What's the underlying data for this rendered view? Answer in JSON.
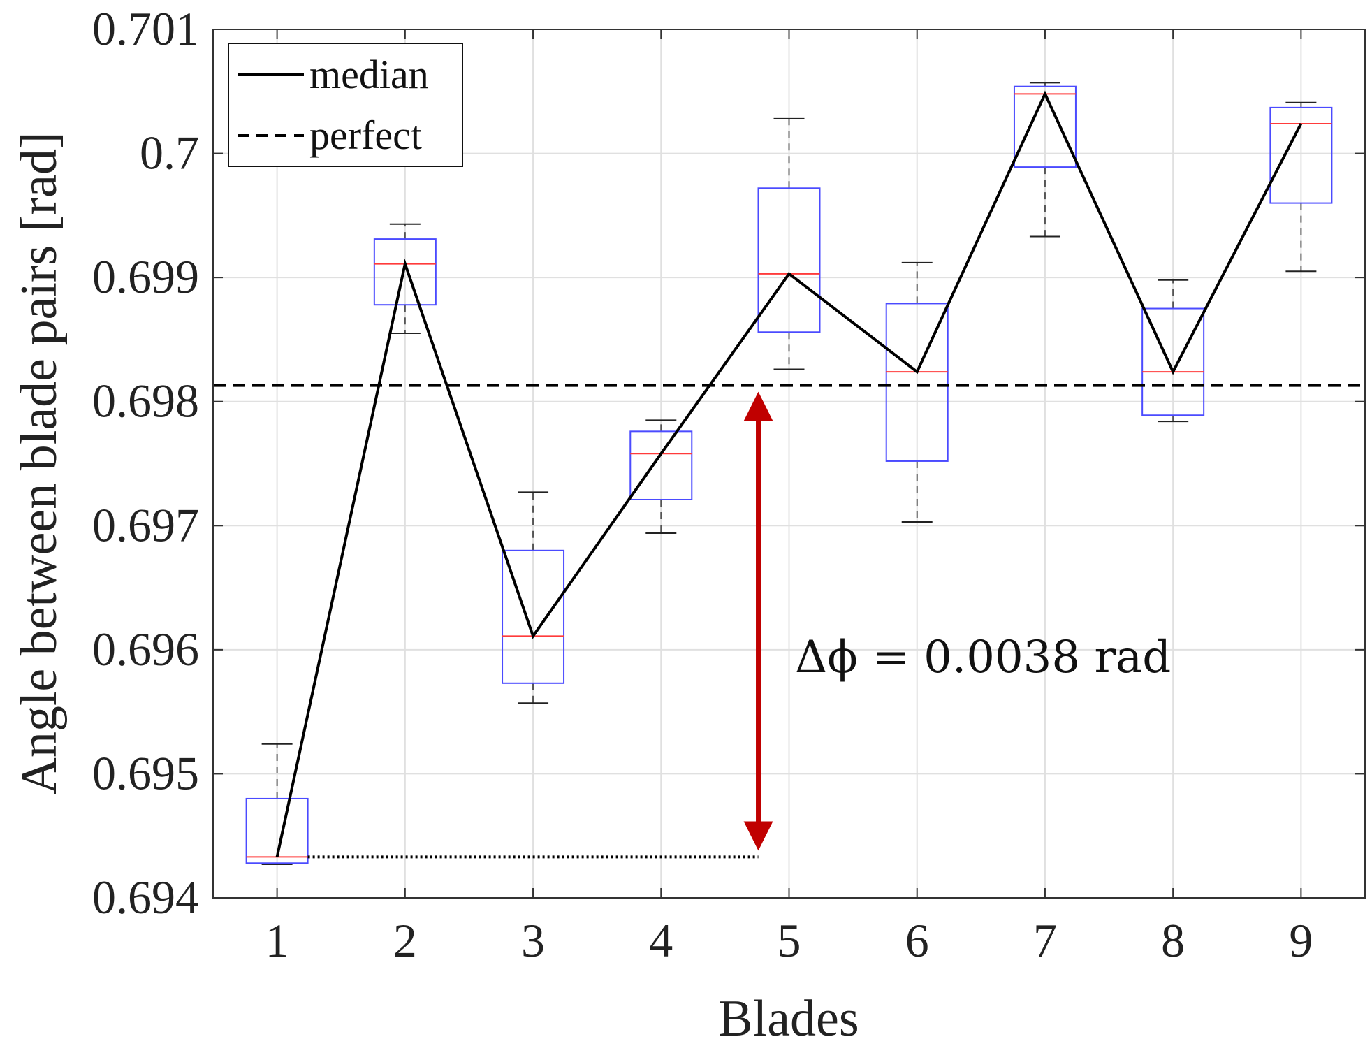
{
  "chart_data": {
    "type": "box",
    "xlabel": "Blades",
    "ylabel": "Angle between blade pairs [rad]",
    "categories": [
      "1",
      "2",
      "3",
      "4",
      "5",
      "6",
      "7",
      "8",
      "9"
    ],
    "ylim": [
      0.694,
      0.701
    ],
    "yticks": [
      0.694,
      0.695,
      0.696,
      0.697,
      0.698,
      0.699,
      0.7,
      0.701
    ],
    "ytick_labels": [
      "0.694",
      "0.695",
      "0.696",
      "0.697",
      "0.698",
      "0.699",
      "0.7",
      "0.701"
    ],
    "grid": true,
    "boxes": [
      {
        "category": "1",
        "whisker_low": 0.69427,
        "q1": 0.69428,
        "median": 0.69433,
        "q3": 0.6948,
        "whisker_high": 0.69524
      },
      {
        "category": "2",
        "whisker_low": 0.69855,
        "q1": 0.69878,
        "median": 0.69911,
        "q3": 0.69931,
        "whisker_high": 0.69943
      },
      {
        "category": "3",
        "whisker_low": 0.69557,
        "q1": 0.69573,
        "median": 0.69611,
        "q3": 0.6968,
        "whisker_high": 0.69727
      },
      {
        "category": "4",
        "whisker_low": 0.69694,
        "q1": 0.69721,
        "median": 0.69758,
        "q3": 0.69776,
        "whisker_high": 0.69785
      },
      {
        "category": "5",
        "whisker_low": 0.69826,
        "q1": 0.69856,
        "median": 0.69903,
        "q3": 0.69972,
        "whisker_high": 0.70028
      },
      {
        "category": "6",
        "whisker_low": 0.69703,
        "q1": 0.69752,
        "median": 0.69824,
        "q3": 0.69879,
        "whisker_high": 0.69912
      },
      {
        "category": "7",
        "whisker_low": 0.69933,
        "q1": 0.69989,
        "median": 0.70048,
        "q3": 0.70054,
        "whisker_high": 0.70057
      },
      {
        "category": "8",
        "whisker_low": 0.69784,
        "q1": 0.69789,
        "median": 0.69824,
        "q3": 0.69875,
        "whisker_high": 0.69898
      },
      {
        "category": "9",
        "whisker_low": 0.69905,
        "q1": 0.6996,
        "median": 0.70024,
        "q3": 0.70037,
        "whisker_high": 0.70041
      }
    ],
    "series": [
      {
        "name": "median",
        "style": "solid",
        "values": [
          0.69433,
          0.69911,
          0.69611,
          0.69758,
          0.69903,
          0.69824,
          0.70048,
          0.69824,
          0.70024
        ]
      },
      {
        "name": "perfect",
        "style": "dashed",
        "value": 0.69813
      }
    ],
    "legend": {
      "position": "top-left",
      "entries": [
        "median",
        "perfect"
      ]
    },
    "annotations": {
      "delta_label": "Δϕ = 0.0038 rad",
      "arrow": {
        "from": 0.69433,
        "to": 0.69813
      },
      "reference_dotted": {
        "y": 0.69433
      }
    },
    "colors": {
      "box": "#4b4bff",
      "median_mark": "#ff3b3b",
      "whisker": "#555555",
      "line": "#000000",
      "arrow": "#c00000",
      "grid": "#e0e0e0"
    }
  }
}
